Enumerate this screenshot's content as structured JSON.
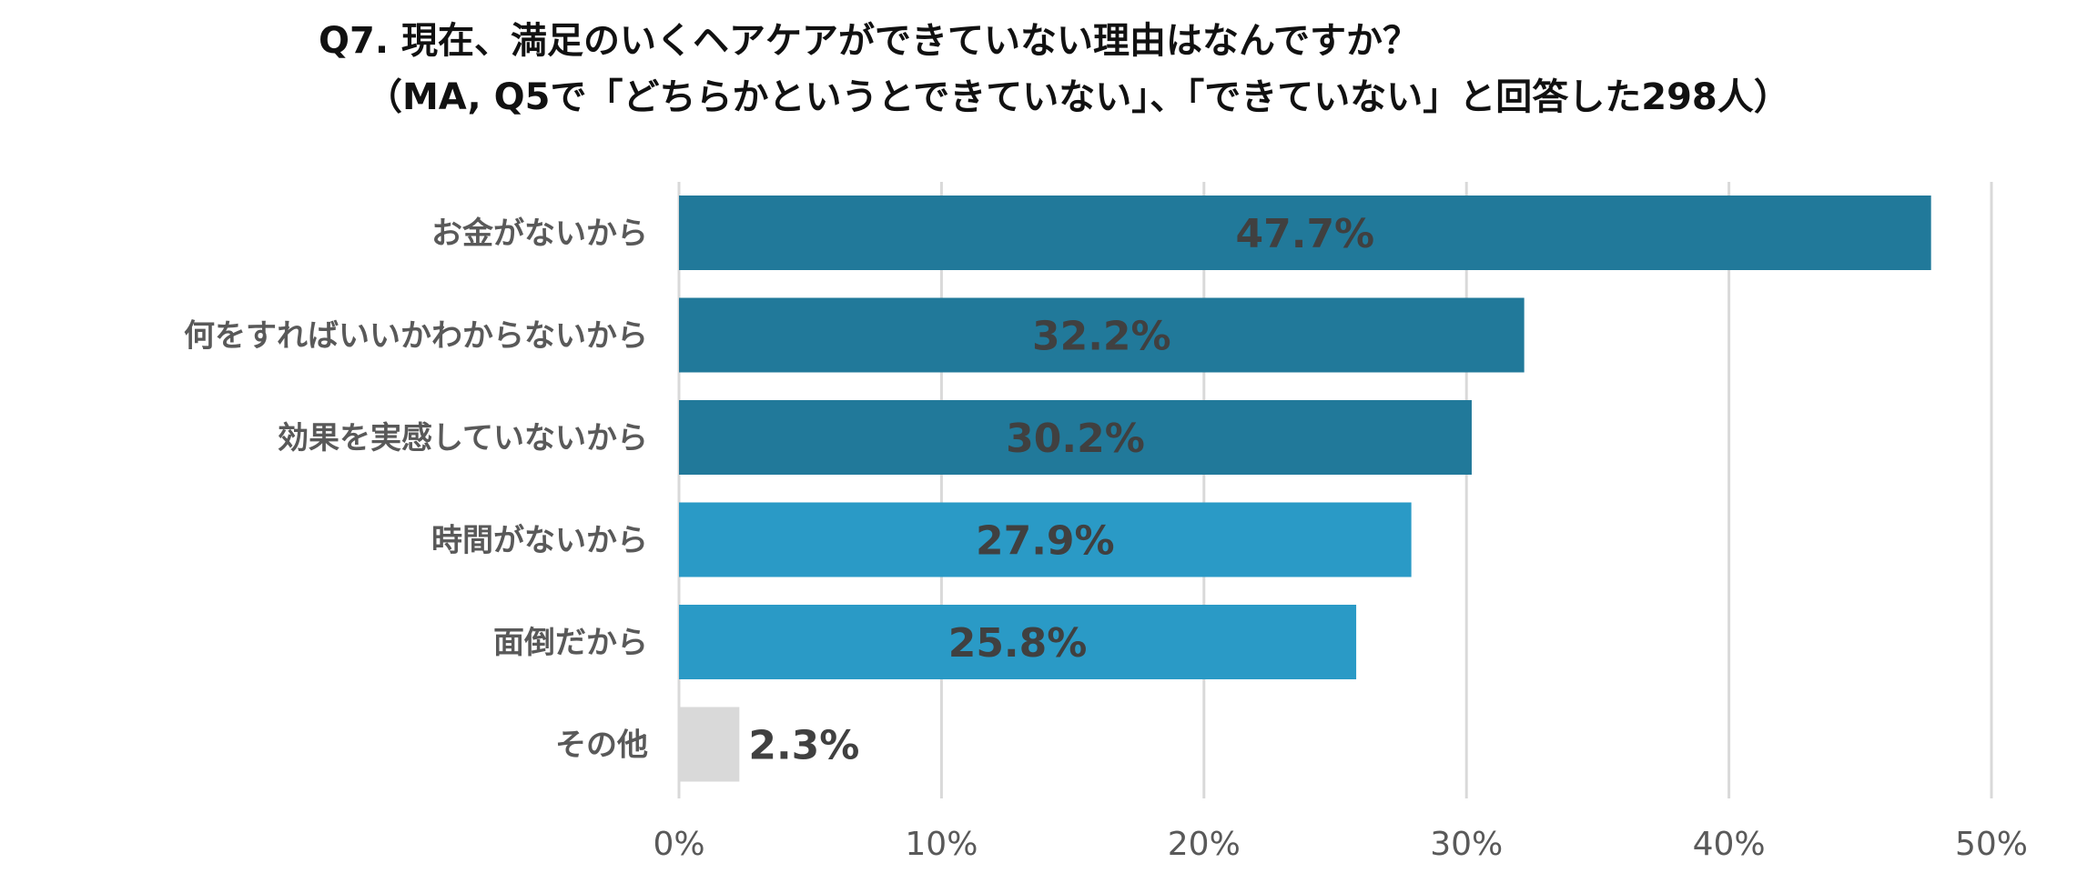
{
  "title_line1": "Q7. 現在、満足のいくヘアケアができていない理由はなんですか？",
  "title_line2": "（MA, Q5で「どちらかというとできていない」、「できていない」と回答した298人）",
  "chart_data": {
    "type": "bar",
    "orientation": "horizontal",
    "categories": [
      "お金がないから",
      "何をすればいいかわからないから",
      "効果を実感していないから",
      "時間がないから",
      "面倒だから",
      "その他"
    ],
    "values": [
      47.7,
      32.2,
      30.2,
      27.9,
      25.8,
      2.3
    ],
    "value_labels": [
      "47.7%",
      "32.2%",
      "30.2%",
      "27.9%",
      "25.8%",
      "2.3%"
    ],
    "colors": [
      "#21799a",
      "#21799a",
      "#21799a",
      "#2a9ac6",
      "#2a9ac6",
      "#d9d9d9"
    ],
    "xlim": [
      0,
      50
    ],
    "xticks": [
      0,
      10,
      20,
      30,
      40,
      50
    ],
    "xtick_labels": [
      "0%",
      "10%",
      "20%",
      "30%",
      "40%",
      "50%"
    ],
    "grid": true
  }
}
